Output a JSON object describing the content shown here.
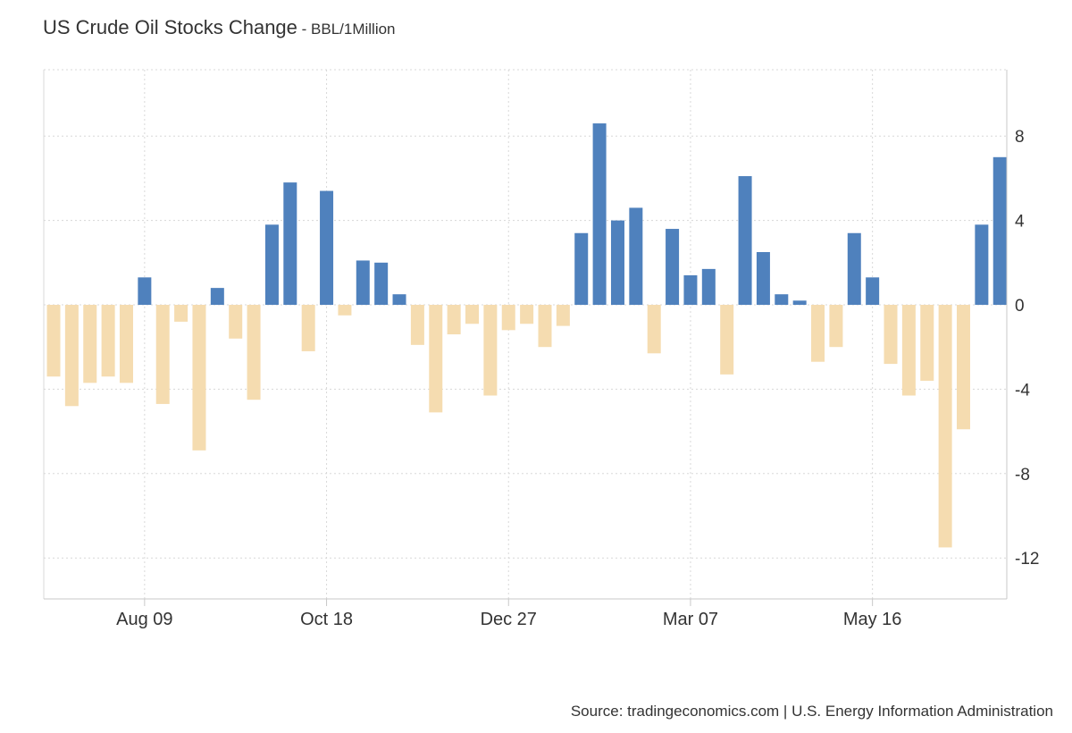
{
  "header": {
    "title": "US Crude Oil Stocks Change",
    "separator": " - ",
    "unit": "BBL/1Million"
  },
  "source": "Source: tradingeconomics.com | U.S. Energy Information Administration",
  "colors": {
    "positive": "#4f81bd",
    "negative": "#f5dcb0",
    "grid": "#d8d8d8",
    "axis": "#c8c8c8"
  },
  "chart_data": {
    "type": "bar",
    "y_axis_position": "right",
    "grid": true,
    "legend": "none",
    "ylim": [
      -14,
      11
    ],
    "y_ticks": [
      8,
      4,
      0,
      -4,
      -8,
      -12
    ],
    "x_tick_labels": [
      {
        "label": "Aug 09",
        "index": 5
      },
      {
        "label": "Oct 18",
        "index": 15
      },
      {
        "label": "Dec 27",
        "index": 25
      },
      {
        "label": "Mar 07",
        "index": 35
      },
      {
        "label": "May 16",
        "index": 45
      }
    ],
    "values": [
      -3.4,
      -4.8,
      -3.7,
      -3.4,
      -3.7,
      1.3,
      -4.7,
      -0.8,
      -6.9,
      0.8,
      -1.6,
      -4.5,
      3.8,
      5.8,
      -2.2,
      5.4,
      -0.5,
      2.1,
      2.0,
      0.5,
      -1.9,
      -5.1,
      -1.4,
      -0.9,
      -4.3,
      -1.2,
      -0.9,
      -2.0,
      -1.0,
      3.4,
      8.6,
      4.0,
      4.6,
      -2.3,
      3.6,
      1.4,
      1.7,
      -3.3,
      6.1,
      2.5,
      0.5,
      0.2,
      -2.7,
      -2.0,
      3.4,
      1.3,
      -2.8,
      -4.3,
      -3.6,
      -11.5,
      -5.9,
      3.8,
      7.0
    ]
  }
}
